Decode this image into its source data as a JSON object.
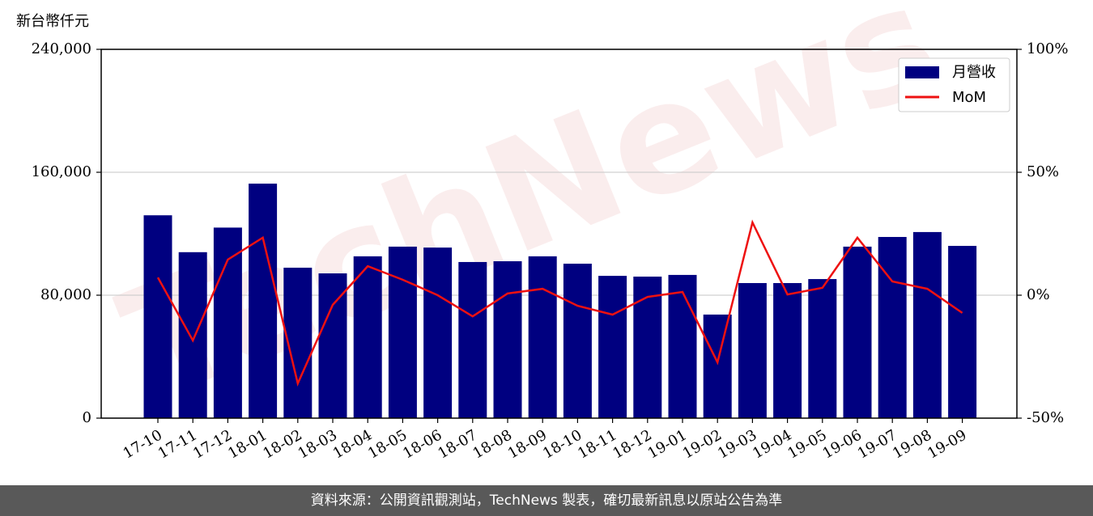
{
  "chart_data": {
    "type": "bar_line",
    "y_label": "新台幣仟元",
    "categories": [
      "17-10",
      "17-11",
      "17-12",
      "18-01",
      "18-02",
      "18-03",
      "18-04",
      "18-05",
      "18-06",
      "18-07",
      "18-08",
      "18-09",
      "18-10",
      "18-11",
      "18-12",
      "19-01",
      "19-02",
      "19-03",
      "19-04",
      "19-05",
      "19-06",
      "19-07",
      "19-08",
      "19-09"
    ],
    "series": [
      {
        "name": "月營收",
        "type": "bar",
        "color": "#000080",
        "values": [
          132000,
          108000,
          124000,
          152600,
          97900,
          94200,
          105300,
          111600,
          111000,
          101600,
          102100,
          105300,
          100500,
          92600,
          92100,
          93200,
          67400,
          87900,
          87900,
          90500,
          111600,
          117900,
          121100,
          112100
        ]
      },
      {
        "name": "MoM",
        "type": "line",
        "axis": "y2",
        "color": "#ee1111",
        "values": [
          7.2,
          -18.4,
          14.5,
          23.4,
          -35.9,
          -3.9,
          11.8,
          6.3,
          0,
          -8.6,
          0.7,
          2.6,
          -4.3,
          -7.9,
          -0.7,
          1.3,
          -27.3,
          29.6,
          0.3,
          3,
          23.4,
          5.6,
          2.6,
          -7.2
        ]
      }
    ],
    "ylim": [
      0,
      240000
    ],
    "yticks": [
      0,
      {
        "value": 80000,
        "label": "80,000"
      },
      {
        "value": 160000,
        "label": "160,000"
      },
      {
        "value": 240000,
        "label": "240,000"
      }
    ],
    "y2lim": [
      -50,
      100
    ],
    "y2ticks": [
      {
        "value": -50,
        "label": "-50%"
      },
      {
        "value": 0,
        "label": "0%"
      },
      {
        "value": 50,
        "label": "50%"
      },
      {
        "value": 100,
        "label": "100%"
      }
    ],
    "grid": true,
    "legend": "upper right",
    "watermark": "TechNews",
    "footer": "資料來源：公開資訊觀測站，TechNews 製表，確切最新訊息以原站公告為準"
  }
}
